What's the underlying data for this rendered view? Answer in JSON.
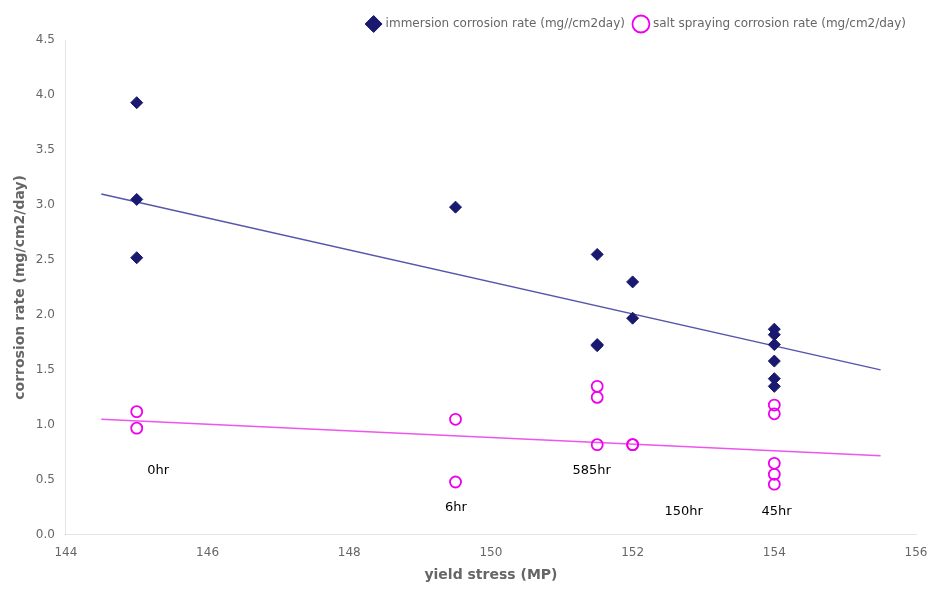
{
  "chart_data": {
    "type": "scatter",
    "xlabel": "yield stress (MP)",
    "ylabel": "corrosion rate (mg/cm2/day)",
    "xlim": [
      144,
      156
    ],
    "ylim": [
      0,
      4.5
    ],
    "xticks": [
      144,
      146,
      148,
      150,
      152,
      154,
      156
    ],
    "yticks": [
      {
        "value": 0,
        "label": "0.0"
      },
      0.5,
      {
        "value": 1.0,
        "label": "1.0"
      },
      1.5,
      {
        "value": 2.0,
        "label": "2.0"
      },
      2.5,
      {
        "value": 3.0,
        "label": "3.0"
      },
      3.5,
      {
        "value": 4.0,
        "label": "4.0"
      },
      4.5
    ],
    "grid": false,
    "legend": "upper right",
    "series": [
      {
        "type": "line",
        "color": "#5555aa",
        "marker": "none",
        "line_style": "solid",
        "x": [
          144.5,
          155.5
        ],
        "values": [
          3.1,
          1.5
        ]
      },
      {
        "type": "line",
        "color": "#ee55ee",
        "marker": "none",
        "line_style": "solid",
        "x": [
          144.5,
          155.5
        ],
        "values": [
          1.05,
          0.72
        ]
      },
      {
        "type": "scatter",
        "name": "immersion corrosion rate (mg//cm2day)",
        "color": "#191970",
        "marker": "diamond",
        "x": [
          145,
          145,
          145,
          149.5,
          151.5,
          151.5,
          151.5,
          152,
          152,
          154,
          154,
          154,
          154,
          154,
          154
        ],
        "values": [
          3.93,
          3.05,
          2.52,
          2.98,
          1.73,
          1.72,
          2.55,
          2.3,
          1.97,
          1.87,
          1.82,
          1.58,
          1.42,
          1.35,
          1.73
        ]
      },
      {
        "type": "scatter",
        "name": "salt spraying corrosion rate (mg/cm2/day)",
        "color": "#ee00ee",
        "marker": "open_circle",
        "x": [
          145,
          145,
          149.5,
          149.5,
          151.5,
          151.5,
          151.5,
          152,
          152,
          154,
          154,
          154,
          154,
          154
        ],
        "values": [
          1.12,
          0.97,
          1.05,
          0.48,
          1.35,
          1.25,
          0.82,
          0.82,
          0.82,
          1.18,
          1.1,
          0.65,
          0.55,
          0.46
        ]
      }
    ],
    "annotations": [
      {
        "text": "0hr",
        "x": 145.15,
        "y": 0.55
      },
      {
        "text": "6hr",
        "x": 149.35,
        "y": 0.22
      },
      {
        "text": "585hr",
        "x": 151.15,
        "y": 0.55
      },
      {
        "text": "150hr",
        "x": 152.45,
        "y": 0.18
      },
      {
        "text": "45hr",
        "x": 153.82,
        "y": 0.18
      }
    ]
  }
}
